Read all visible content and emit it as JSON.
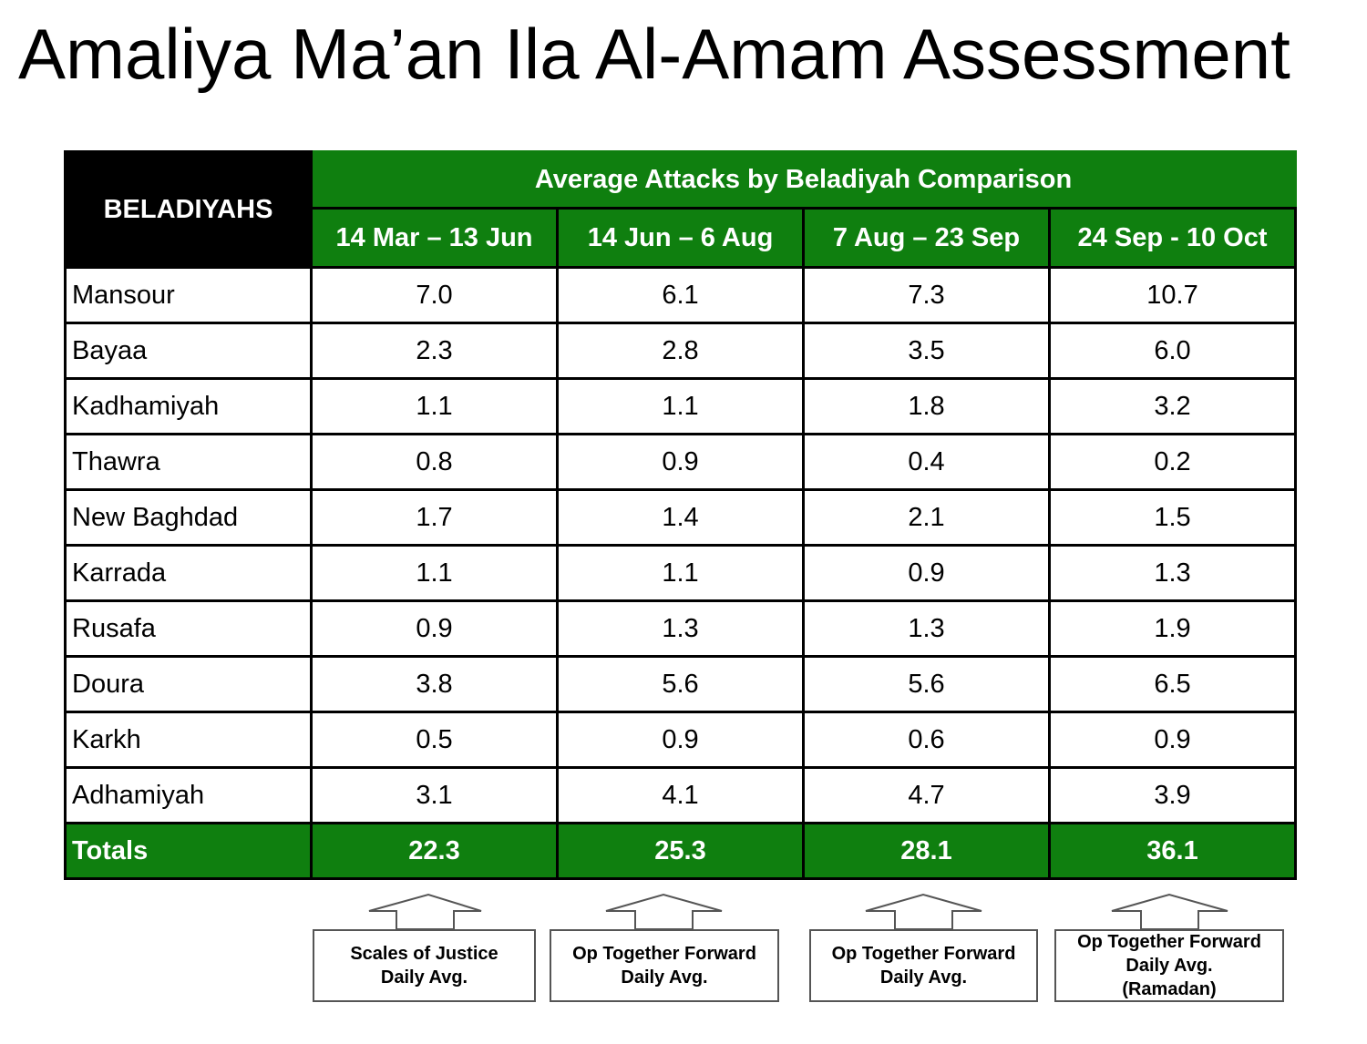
{
  "title": "Amaliya Ma’an Ila Al-Amam Assessment",
  "table": {
    "corner_label": "BELADIYAHS",
    "group_header": "Average Attacks by Beladiyah Comparison",
    "periods": [
      "14 Mar – 13 Jun",
      "14 Jun – 6 Aug",
      "7 Aug – 23 Sep",
      "24 Sep - 10 Oct"
    ],
    "rows": [
      {
        "name": "Mansour",
        "values": [
          "7.0",
          "6.1",
          "7.3",
          "10.7"
        ]
      },
      {
        "name": "Bayaa",
        "values": [
          "2.3",
          "2.8",
          "3.5",
          "6.0"
        ]
      },
      {
        "name": "Kadhamiyah",
        "values": [
          "1.1",
          "1.1",
          "1.8",
          "3.2"
        ]
      },
      {
        "name": "Thawra",
        "values": [
          "0.8",
          "0.9",
          "0.4",
          "0.2"
        ]
      },
      {
        "name": "New Baghdad",
        "values": [
          "1.7",
          "1.4",
          "2.1",
          "1.5"
        ]
      },
      {
        "name": "Karrada",
        "values": [
          "1.1",
          "1.1",
          "0.9",
          "1.3"
        ]
      },
      {
        "name": "Rusafa",
        "values": [
          "0.9",
          "1.3",
          "1.3",
          "1.9"
        ]
      },
      {
        "name": "Doura",
        "values": [
          "3.8",
          "5.6",
          "5.6",
          "6.5"
        ]
      },
      {
        "name": "Karkh",
        "values": [
          "0.5",
          "0.9",
          "0.6",
          "0.9"
        ]
      },
      {
        "name": "Adhamiyah",
        "values": [
          "3.1",
          "4.1",
          "4.7",
          "3.9"
        ]
      }
    ],
    "totals": {
      "label": "Totals",
      "values": [
        "22.3",
        "25.3",
        "28.1",
        "36.1"
      ]
    }
  },
  "callouts": [
    "Scales of Justice\nDaily Avg.",
    "Op Together Forward\nDaily Avg.",
    "Op Together Forward\nDaily Avg.",
    "Op Together Forward\nDaily Avg.\n(Ramadan)"
  ],
  "colors": {
    "header_green": "#0f7f0f",
    "corner_black": "#000000"
  }
}
